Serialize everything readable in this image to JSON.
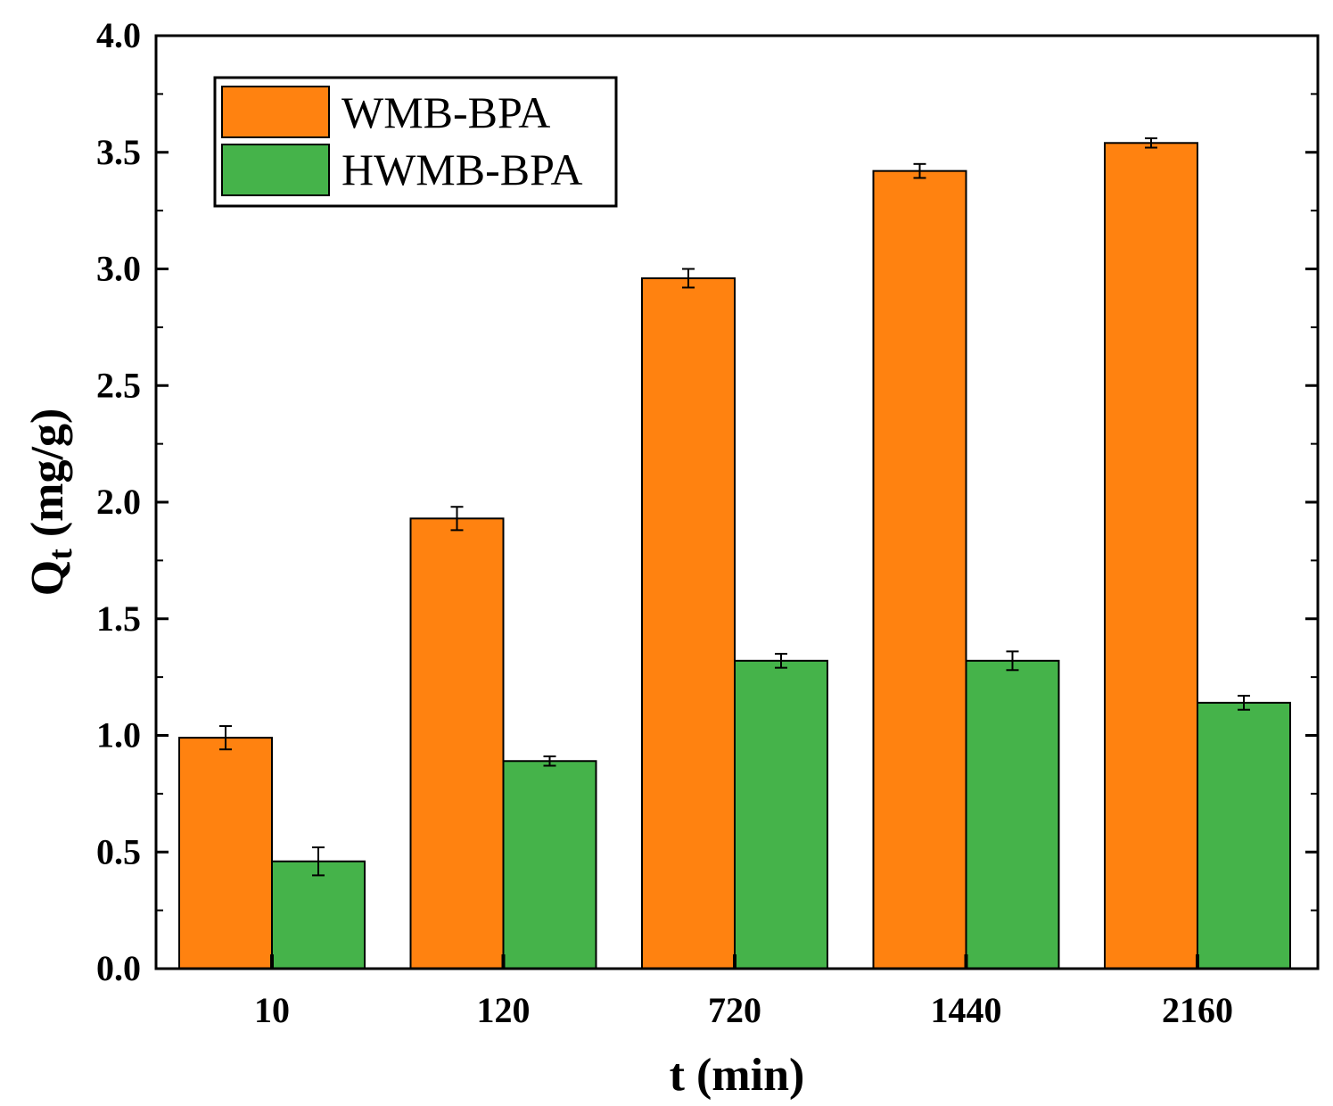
{
  "chart_data": {
    "type": "bar",
    "categories": [
      "10",
      "120",
      "720",
      "1440",
      "2160"
    ],
    "series": [
      {
        "name": "WMB-BPA",
        "color": "#FF8210",
        "values": [
          0.99,
          1.93,
          2.96,
          3.42,
          3.54
        ],
        "errors": [
          0.05,
          0.05,
          0.04,
          0.03,
          0.02
        ]
      },
      {
        "name": "HWMB-BPA",
        "color": "#45B34A",
        "values": [
          0.46,
          0.89,
          1.32,
          1.32,
          1.14
        ],
        "errors": [
          0.06,
          0.02,
          0.03,
          0.04,
          0.03
        ]
      }
    ],
    "xlabel": "t (min)",
    "ylabel_main": "Q",
    "ylabel_sub": "t",
    "ylabel_unit": " (mg/g)",
    "ylim": [
      0,
      4.0
    ],
    "yticks": [
      "0.0",
      "0.5",
      "1.0",
      "1.5",
      "2.0",
      "2.5",
      "3.0",
      "3.5",
      "4.0"
    ],
    "legend_position": "top-left"
  }
}
